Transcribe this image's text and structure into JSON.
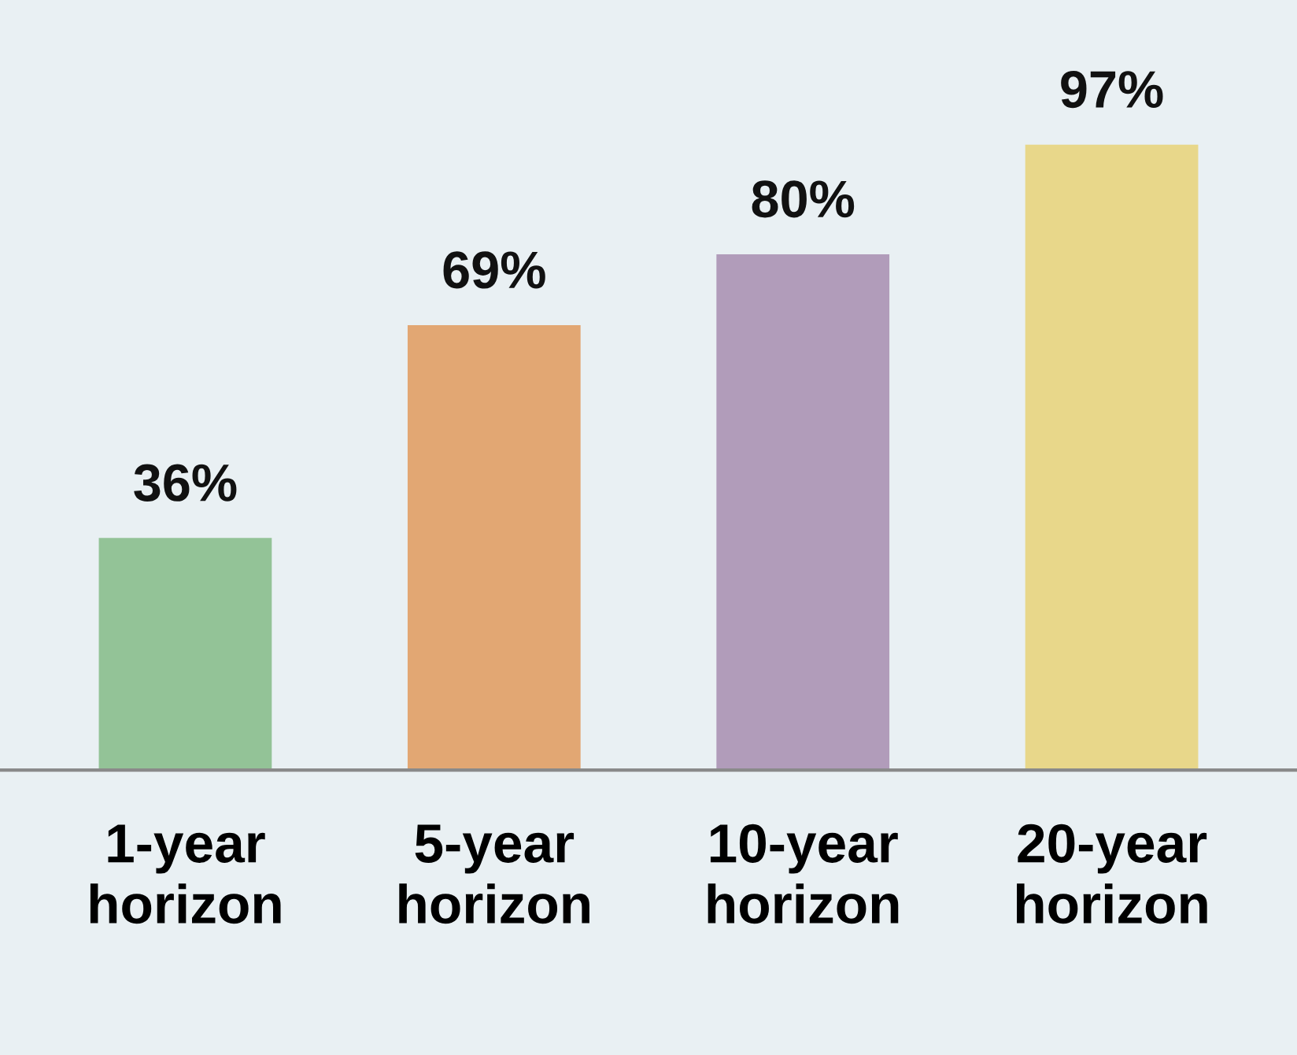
{
  "chart_data": {
    "type": "bar",
    "categories": [
      "1-year\nhorizon",
      "5-year\nhorizon",
      "10-year\nhorizon",
      "20-year\nhorizon"
    ],
    "values": [
      36,
      69,
      80,
      97
    ],
    "colors": [
      "#93c397",
      "#e2a773",
      "#b19cba",
      "#e8d78a"
    ],
    "value_labels": [
      "36%",
      "69%",
      "80%",
      "97%"
    ],
    "grid": false,
    "legend": false
  }
}
